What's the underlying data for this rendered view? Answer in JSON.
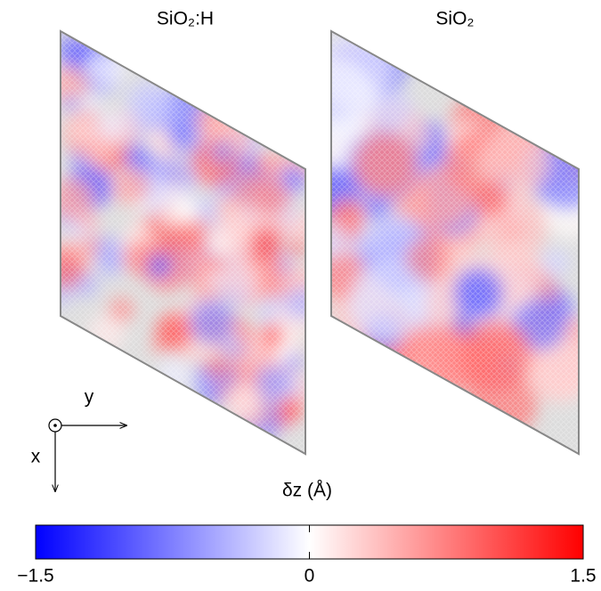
{
  "chart_data": {
    "type": "colormap",
    "panels": [
      {
        "title": "SiO₂:H"
      },
      {
        "title": "SiO₂"
      }
    ],
    "axis_labels": {
      "x": "x",
      "y": "y"
    },
    "colorbar": {
      "label": "δz (Å)",
      "lim": [
        -1.5,
        1.5
      ],
      "ticks": [
        {
          "value": -1.5,
          "label": "−1.5"
        },
        0,
        1.5
      ],
      "colors": [
        "#0000ff",
        "#ffffff",
        "#ff0000"
      ]
    }
  }
}
